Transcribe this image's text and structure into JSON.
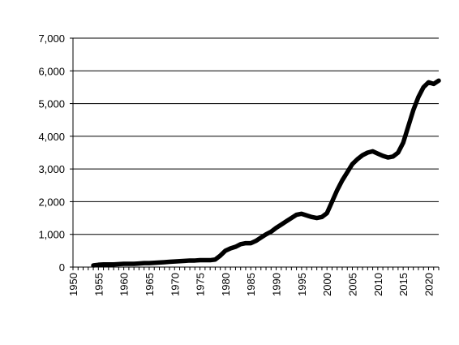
{
  "chart_data": {
    "type": "line",
    "title": "",
    "xlabel": "",
    "ylabel": "",
    "xlim": [
      1950,
      2022
    ],
    "ylim": [
      0,
      7000
    ],
    "grid": true,
    "legend": "none",
    "line_color": "#000000",
    "x_ticks": [
      1950,
      1955,
      1960,
      1965,
      1970,
      1975,
      1980,
      1985,
      1990,
      1995,
      2000,
      2005,
      2010,
      2015,
      2020
    ],
    "x_tick_labels": [
      "1950",
      "1955",
      "1960",
      "1965",
      "1970",
      "1975",
      "1980",
      "1985",
      "1990",
      "1995",
      "2000",
      "2005",
      "2010",
      "2015",
      "2020"
    ],
    "y_ticks": [
      0,
      1000,
      2000,
      3000,
      4000,
      5000,
      6000,
      7000
    ],
    "y_tick_labels": [
      "0",
      "1,000",
      "2,000",
      "3,000",
      "4,000",
      "5,000",
      "6,000",
      "7,000"
    ],
    "series": [
      {
        "x": [
          1954,
          1955,
          1956,
          1957,
          1958,
          1959,
          1960,
          1961,
          1962,
          1963,
          1964,
          1965,
          1966,
          1967,
          1968,
          1969,
          1970,
          1971,
          1972,
          1973,
          1974,
          1975,
          1976,
          1977,
          1978,
          1979,
          1980,
          1981,
          1982,
          1983,
          1984,
          1985,
          1986,
          1987,
          1988,
          1989,
          1990,
          1991,
          1992,
          1993,
          1994,
          1995,
          1996,
          1997,
          1998,
          1999,
          2000,
          2001,
          2002,
          2003,
          2004,
          2005,
          2006,
          2007,
          2008,
          2009,
          2010,
          2011,
          2012,
          2013,
          2014,
          2015,
          2016,
          2017,
          2018,
          2019,
          2020,
          2021,
          2022
        ],
        "y": [
          50,
          70,
          80,
          80,
          80,
          90,
          100,
          100,
          100,
          110,
          120,
          120,
          130,
          140,
          150,
          160,
          170,
          180,
          190,
          200,
          200,
          210,
          210,
          210,
          230,
          350,
          500,
          570,
          620,
          700,
          730,
          730,
          800,
          900,
          1000,
          1080,
          1200,
          1300,
          1400,
          1500,
          1600,
          1630,
          1580,
          1530,
          1500,
          1530,
          1650,
          2000,
          2350,
          2650,
          2900,
          3150,
          3300,
          3420,
          3500,
          3540,
          3470,
          3400,
          3350,
          3380,
          3500,
          3800,
          4300,
          4800,
          5200,
          5500,
          5650,
          5600,
          5700
        ]
      }
    ]
  }
}
